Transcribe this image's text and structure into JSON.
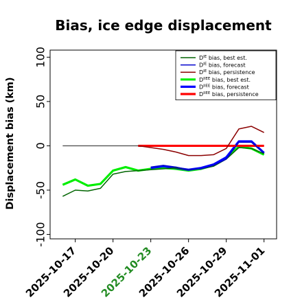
{
  "chart_data": {
    "type": "line",
    "title": "Bias, ice edge displacement",
    "xlabel": "",
    "ylabel": "Displacement bias (km)",
    "ylim": [
      -105,
      108
    ],
    "xlim": [
      "2025-10-15",
      "2025-11-02"
    ],
    "yticks": [
      {
        "value": 100,
        "label": "100"
      },
      {
        "value": 50,
        "label": "50"
      },
      {
        "value": 0,
        "label": "0"
      },
      {
        "value": -50,
        "label": "-50"
      },
      {
        "value": -100,
        "label": "-100"
      }
    ],
    "xticks": [
      {
        "date": "2025-10-17",
        "label": "2025-10-17",
        "color": "#000000"
      },
      {
        "date": "2025-10-20",
        "label": "2025-10-20",
        "color": "#000000"
      },
      {
        "date": "2025-10-23",
        "label": "2025-10-23",
        "color": "#228B22"
      },
      {
        "date": "2025-10-26",
        "label": "2025-10-26",
        "color": "#000000"
      },
      {
        "date": "2025-10-29",
        "label": "2025-10-29",
        "color": "#000000"
      },
      {
        "date": "2025-11-01",
        "label": "2025-11-01",
        "color": "#000000"
      }
    ],
    "reference_line": {
      "y": 0,
      "from": "2025-10-16",
      "to": "2025-11-01",
      "color": "#555555"
    },
    "legend_position": "top-right",
    "series": [
      {
        "name": "DIE bias, best est.",
        "legend_sup": "IE",
        "legend_rest": " bias, best est.",
        "color": "#006400",
        "width": 1.5,
        "x": [
          "2025-10-16",
          "2025-10-17",
          "2025-10-18",
          "2025-10-19",
          "2025-10-20",
          "2025-10-21",
          "2025-10-22",
          "2025-10-23",
          "2025-10-24",
          "2025-10-25",
          "2025-10-26",
          "2025-10-27",
          "2025-10-28",
          "2025-10-29",
          "2025-10-30",
          "2025-10-31",
          "2025-11-01"
        ],
        "y": [
          -57,
          -50,
          -51,
          -48,
          -32,
          -29,
          -28,
          -27,
          -26,
          -25,
          -27,
          -26,
          -23,
          -15,
          -2,
          -3,
          -9
        ]
      },
      {
        "name": "DIE bias, forecast",
        "legend_sup": "IE",
        "legend_rest": " bias, forecast",
        "color": "#0000cd",
        "width": 1.5,
        "x": [
          "2025-10-23",
          "2025-10-24",
          "2025-10-25",
          "2025-10-26",
          "2025-10-27",
          "2025-10-28",
          "2025-10-29",
          "2025-10-30",
          "2025-10-31",
          "2025-11-01"
        ],
        "y": [
          -24,
          -22,
          -24,
          -27,
          -26,
          -22,
          -15,
          4,
          4,
          -8
        ]
      },
      {
        "name": "DIE bias, persistence",
        "legend_sup": "IE",
        "legend_rest": " bias, persistence",
        "color": "#8b0000",
        "width": 1.5,
        "x": [
          "2025-10-22",
          "2025-10-23",
          "2025-10-24",
          "2025-10-25",
          "2025-10-26",
          "2025-10-27",
          "2025-10-28",
          "2025-10-29",
          "2025-10-30",
          "2025-10-31",
          "2025-11-01"
        ],
        "y": [
          0,
          -2,
          -4,
          -7,
          -11,
          -11,
          -10,
          -3,
          19,
          22,
          15
        ]
      },
      {
        "name": "DIIEE bias, best est.",
        "legend_sup": "IIEE",
        "legend_rest": " bias, best est.",
        "color": "#00ee00",
        "width": 3.2,
        "x": [
          "2025-10-16",
          "2025-10-17",
          "2025-10-18",
          "2025-10-19",
          "2025-10-20",
          "2025-10-21",
          "2025-10-22",
          "2025-10-23",
          "2025-10-24",
          "2025-10-25",
          "2025-10-26",
          "2025-10-27",
          "2025-10-28",
          "2025-10-29",
          "2025-10-30",
          "2025-10-31",
          "2025-11-01"
        ],
        "y": [
          -44,
          -38,
          -45,
          -43,
          -28,
          -24,
          -28,
          -26,
          -25,
          -26,
          -28,
          -26,
          -22,
          -13,
          -1,
          -3,
          -10
        ]
      },
      {
        "name": "DIIEE bias, forecast",
        "legend_sup": "IIEE",
        "legend_rest": " bias, forecast",
        "color": "#0000ff",
        "width": 3.2,
        "x": [
          "2025-10-23",
          "2025-10-24",
          "2025-10-25",
          "2025-10-26",
          "2025-10-27",
          "2025-10-28",
          "2025-10-29",
          "2025-10-30",
          "2025-10-31",
          "2025-11-01"
        ],
        "y": [
          -25,
          -23,
          -25,
          -27,
          -25,
          -21,
          -13,
          5,
          5,
          -8
        ]
      },
      {
        "name": "DIIEE bias, persistence",
        "legend_sup": "IIEE",
        "legend_rest": " bias, persistence",
        "color": "#ff0000",
        "width": 3.2,
        "x": [
          "2025-10-22",
          "2025-10-23",
          "2025-10-24",
          "2025-10-25",
          "2025-10-26",
          "2025-10-27",
          "2025-10-28",
          "2025-10-29",
          "2025-10-30",
          "2025-10-31",
          "2025-11-01"
        ],
        "y": [
          0,
          0,
          0,
          0,
          0,
          0,
          0,
          0,
          0,
          0,
          0
        ]
      }
    ]
  }
}
